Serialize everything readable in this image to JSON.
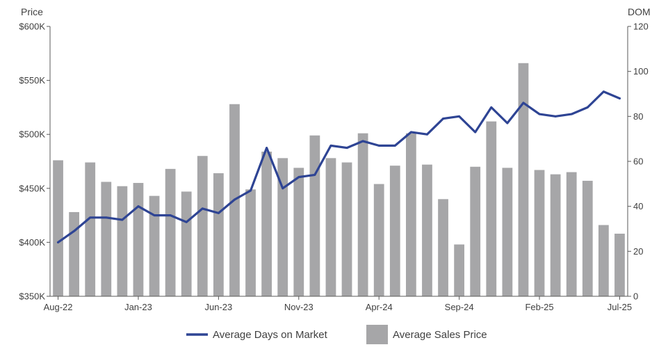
{
  "chart_data": {
    "type": "bar",
    "left_axis_title": "Price",
    "right_axis_title": "DOM",
    "y_left": {
      "range": [
        350000,
        600000
      ],
      "ticks": [
        350000,
        400000,
        450000,
        500000,
        550000,
        600000
      ],
      "tick_labels": [
        "$350K",
        "$400K",
        "$450K",
        "$500K",
        "$550K",
        "$600K"
      ]
    },
    "y_right": {
      "range": [
        0,
        120
      ],
      "ticks": [
        0,
        20,
        40,
        60,
        80,
        100,
        120
      ],
      "tick_labels": [
        "0",
        "20",
        "40",
        "60",
        "80",
        "100",
        "120"
      ]
    },
    "x_labels": [
      {
        "index": 0,
        "label": "Aug-22"
      },
      {
        "index": 5,
        "label": "Jan-23"
      },
      {
        "index": 10,
        "label": "Jun-23"
      },
      {
        "index": 15,
        "label": "Nov-23"
      },
      {
        "index": 20,
        "label": "Apr-24"
      },
      {
        "index": 25,
        "label": "Sep-24"
      },
      {
        "index": 30,
        "label": "Feb-25"
      },
      {
        "index": 35,
        "label": "Jul-25"
      }
    ],
    "categories": [
      "Aug-22",
      "Sep-22",
      "Oct-22",
      "Nov-22",
      "Dec-22",
      "Jan-23",
      "Feb-23",
      "Mar-23",
      "Apr-23",
      "May-23",
      "Jun-23",
      "Jul-23",
      "Aug-23",
      "Sep-23",
      "Oct-23",
      "Nov-23",
      "Dec-23",
      "Jan-24",
      "Feb-24",
      "Mar-24",
      "Apr-24",
      "May-24",
      "Jun-24",
      "Jul-24",
      "Aug-24",
      "Sep-24",
      "Oct-24",
      "Nov-24",
      "Dec-24",
      "Jan-25",
      "Feb-25",
      "Mar-25",
      "Apr-25",
      "May-25",
      "Jun-25",
      "Jul-25"
    ],
    "series": [
      {
        "name": "Average Sales Price",
        "type": "bar",
        "axis": "left",
        "color": "#a6a6a8",
        "values": [
          476000,
          428000,
          474000,
          456000,
          452000,
          455000,
          443000,
          468000,
          447000,
          480000,
          464000,
          528000,
          449000,
          484000,
          478000,
          469000,
          499000,
          478000,
          474000,
          501000,
          454000,
          471000,
          501000,
          472000,
          440000,
          398000,
          470000,
          512000,
          469000,
          566000,
          467000,
          463000,
          465000,
          457000,
          416000,
          408000
        ]
      },
      {
        "name": "Average Days on Market",
        "type": "line",
        "axis": "right",
        "color": "#2e4494",
        "values": [
          24,
          29,
          35,
          35,
          34,
          40,
          36,
          36,
          33,
          39,
          37,
          43,
          47,
          66,
          48,
          53,
          54,
          67,
          66,
          69,
          67,
          67,
          73,
          72,
          79,
          80,
          73,
          84,
          77,
          86,
          81,
          80,
          81,
          84,
          91,
          88
        ]
      }
    ]
  }
}
